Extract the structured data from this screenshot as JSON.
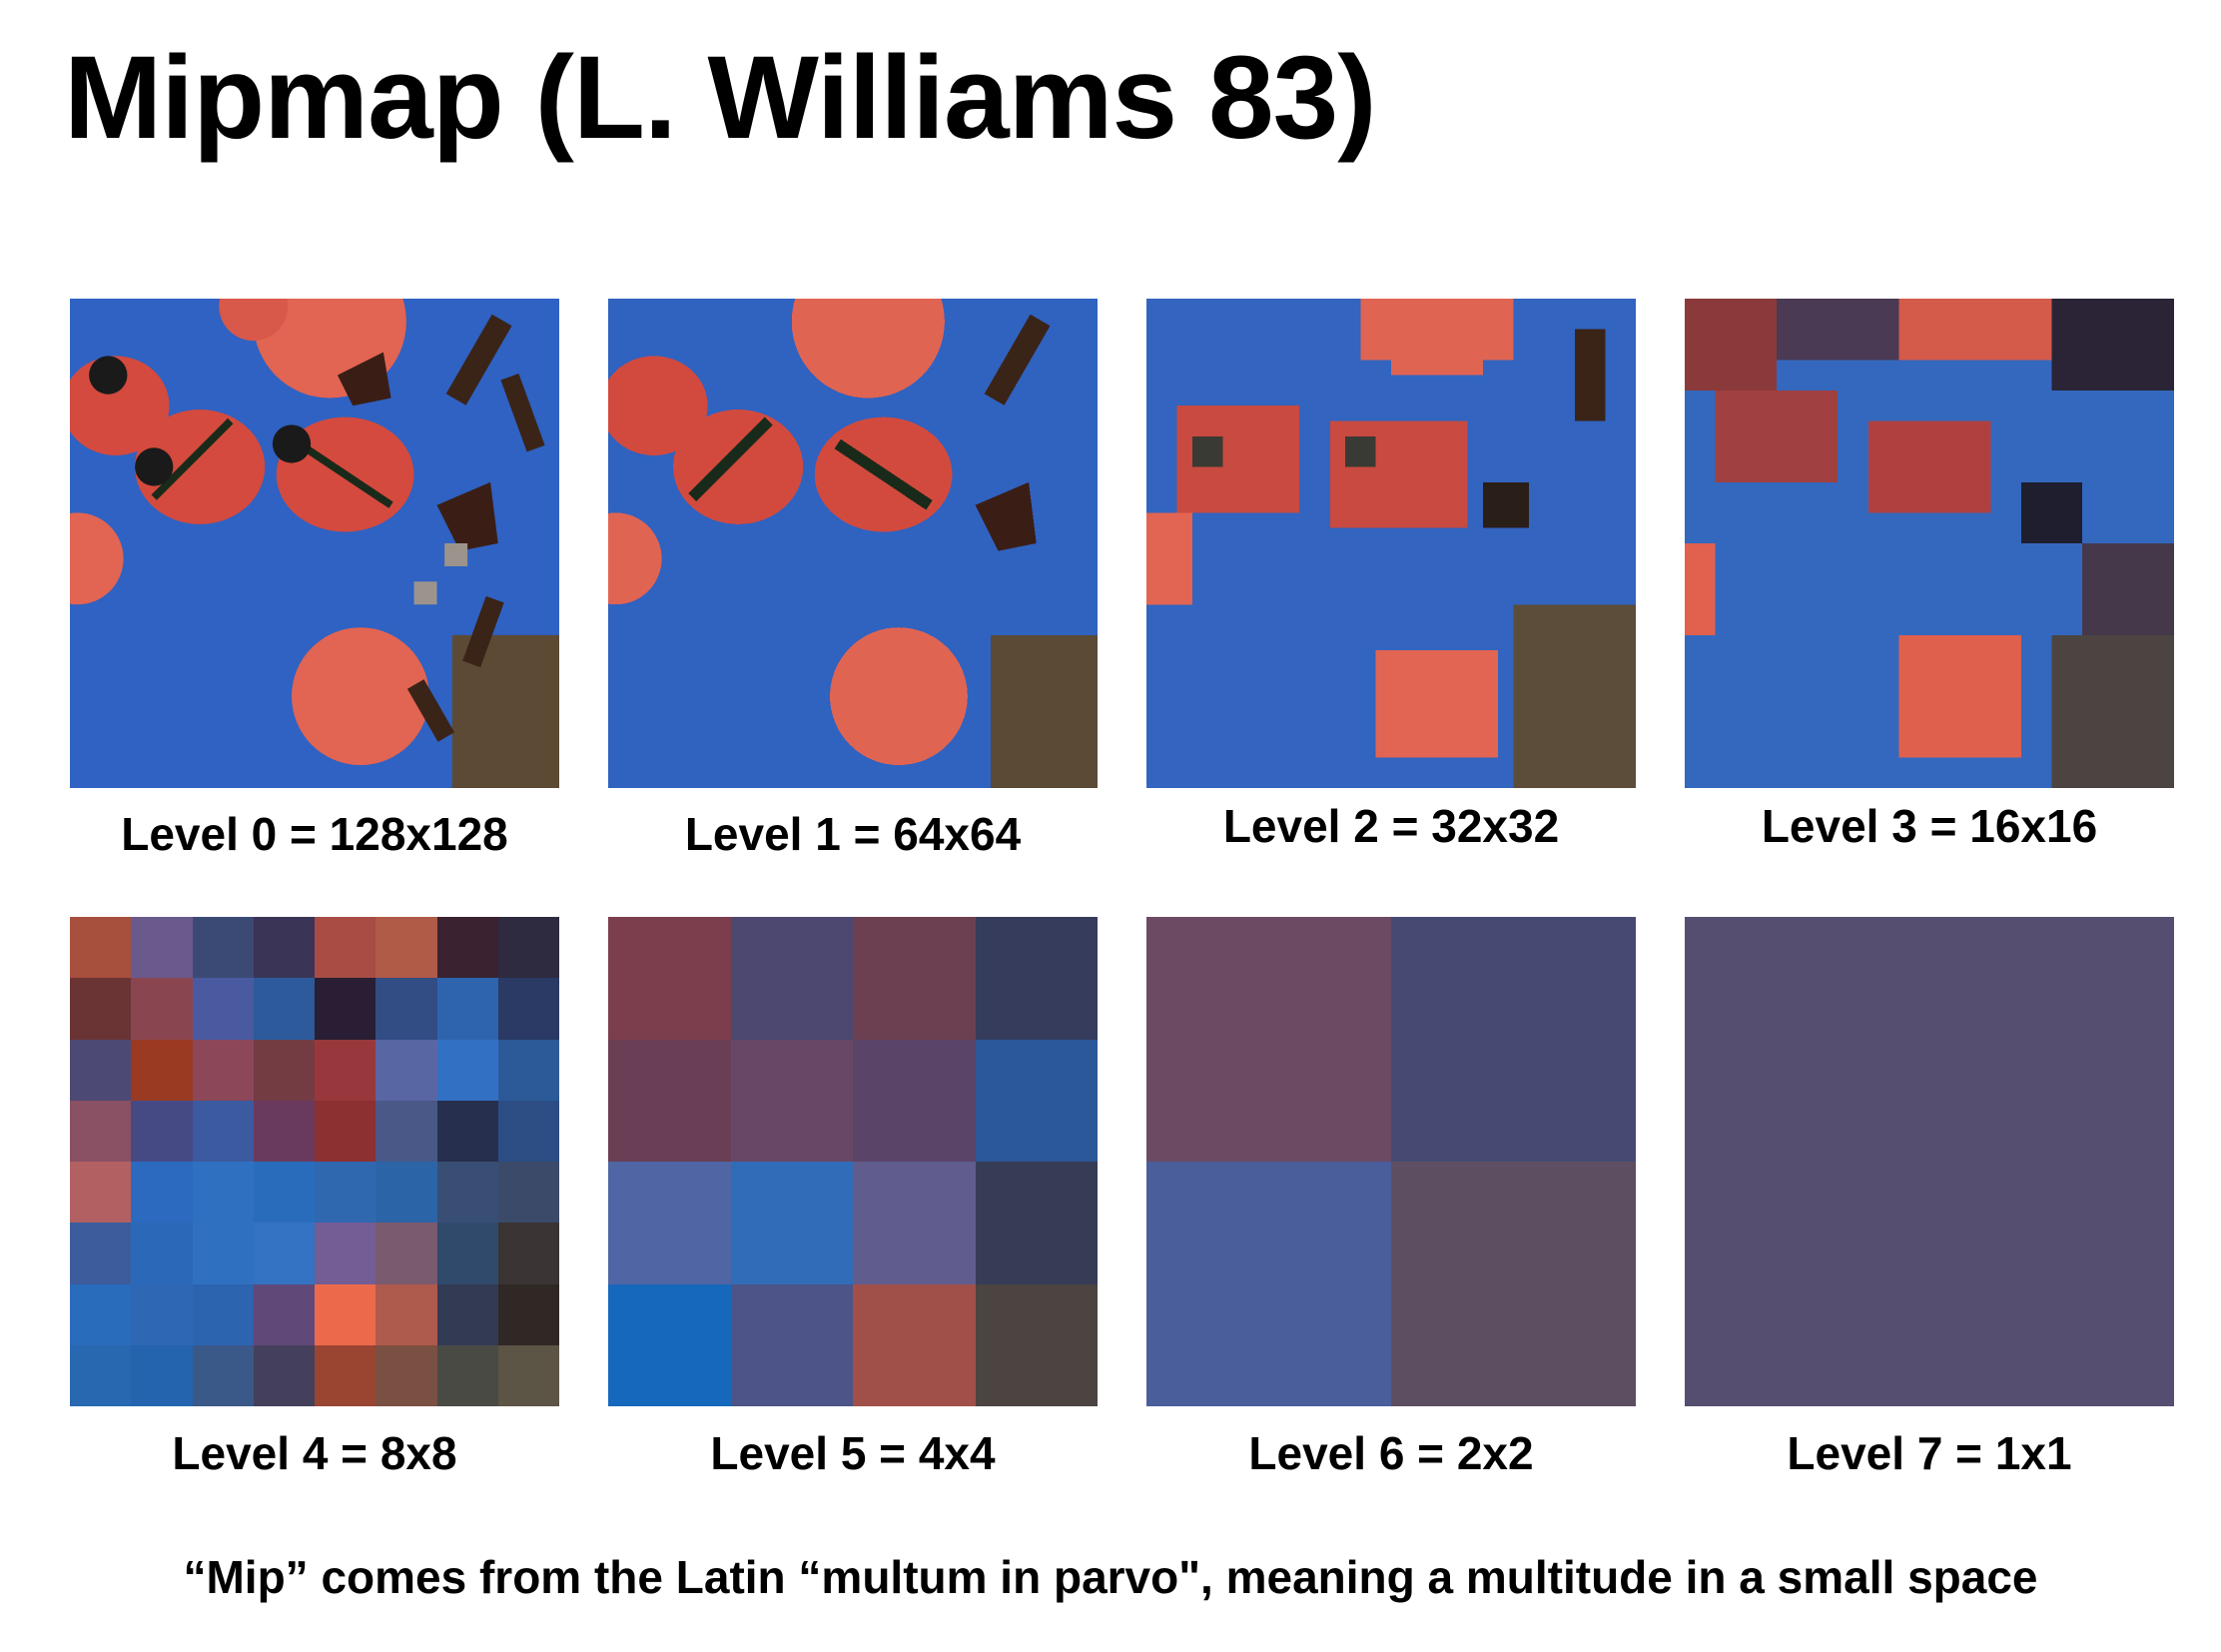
{
  "title": "Mipmap (L. Williams 83)",
  "caption": "“Mip” comes from the Latin “multum in parvo\", meaning a multitude in a small space",
  "levels": [
    {
      "label": "Level 0 = 128x128"
    },
    {
      "label": "Level 1 = 64x64"
    },
    {
      "label": "Level 2 = 32x32"
    },
    {
      "label": "Level 3 = 16x16"
    },
    {
      "label": "Level 4 = 8x8",
      "grid_size": 8,
      "colors": [
        "#a8503e",
        "#6a5a8c",
        "#3b4a74",
        "#3a3556",
        "#a84c44",
        "#b05a48",
        "#3a2230",
        "#2e2a40",
        "#6a3434",
        "#8a4650",
        "#4a5aa0",
        "#2c5a9a",
        "#2a1e34",
        "#324c84",
        "#2e64ae",
        "#2a3a64",
        "#4c4a74",
        "#9a3a22",
        "#8c4858",
        "#723c42",
        "#98383c",
        "#5866a4",
        "#3270c4",
        "#2c5a98",
        "#8a5064",
        "#464a84",
        "#3c5aa0",
        "#6a3a5e",
        "#8c3032",
        "#4a5888",
        "#26304e",
        "#2c4e84",
        "#b26062",
        "#2c6ac0",
        "#3070c0",
        "#2a6cbc",
        "#3068b0",
        "#2c64a8",
        "#384e74",
        "#3a4a68",
        "#3c5c9c",
        "#2c68b8",
        "#3070c0",
        "#3472c4",
        "#745c94",
        "#7a5a6e",
        "#304a6c",
        "#3a3434",
        "#2a6cbc",
        "#2e68b4",
        "#2c64b0",
        "#604878",
        "#ec6a4c",
        "#ae5a4c",
        "#323a54",
        "#302824",
        "#2868b0",
        "#2464ae",
        "#3a5888",
        "#44405c",
        "#9a4432",
        "#7a5042",
        "#4a4a44",
        "#5c5444"
      ]
    },
    {
      "label": "Level 5 = 4x4",
      "grid_size": 4,
      "colors": [
        "#7c3e4c",
        "#4c4870",
        "#6c4050",
        "#353c5c",
        "#6a3e54",
        "#664866",
        "#5a4468",
        "#2a5898",
        "#5066a4",
        "#316cb8",
        "#605c8e",
        "#363c56",
        "#1668bc",
        "#4c5488",
        "#a05048",
        "#4c4440"
      ]
    },
    {
      "label": "Level 6 = 2x2",
      "grid_size": 2,
      "colors": [
        "#6c4a64",
        "#464a72",
        "#4a5e9c",
        "#5e4e62"
      ]
    },
    {
      "label": "Level 7 = 1x1",
      "grid_size": 1,
      "colors": [
        "#564e70"
      ]
    }
  ]
}
